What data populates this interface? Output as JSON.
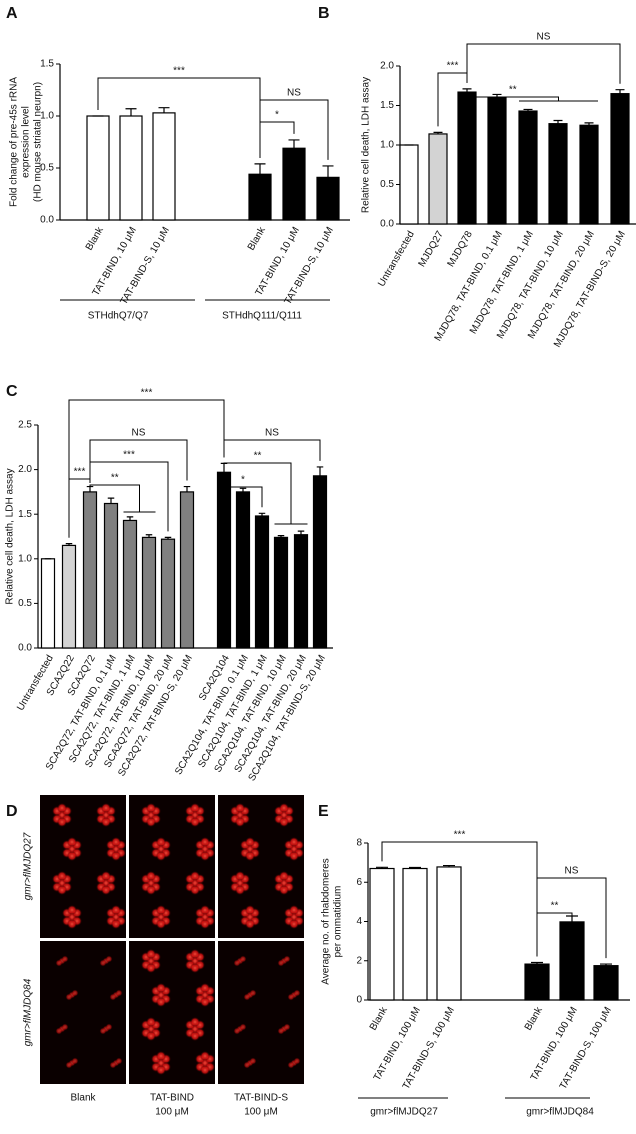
{
  "chart_data": [
    {
      "type": "bar",
      "panel_label": "A",
      "ylabel": [
        "Fold change of pre-45s rRNA",
        "expression level",
        "(HD mouse striatal neurpn)"
      ],
      "categories": [
        "Blank",
        "TAT-BIND, 10 μM",
        "TAT-BIND-S, 10 μM",
        "Blank",
        "TAT-BIND, 10 μM",
        "TAT-BIND-S, 10 μM"
      ],
      "values": [
        1.0,
        1.0,
        1.03,
        0.44,
        0.69,
        0.41
      ],
      "errors": [
        0.0,
        0.07,
        0.05,
        0.1,
        0.08,
        0.11
      ],
      "colors": [
        "#ffffff",
        "#ffffff",
        "#ffffff",
        "#000000",
        "#000000",
        "#000000"
      ],
      "groups": [
        "STHdhQ7/Q7",
        "STHdhQ111/Q111"
      ],
      "annotations": [
        "***",
        "NS",
        "*"
      ],
      "ylim": [
        0,
        1.5
      ],
      "yticks": [
        {
          "value": 0,
          "label": "0.0"
        },
        {
          "value": 0.5,
          "label": "0.5"
        },
        {
          "value": 1,
          "label": "1.0"
        },
        {
          "value": 1.5,
          "label": "1.5"
        }
      ]
    },
    {
      "type": "bar",
      "panel_label": "B",
      "ylabel": [
        "Relative cell death, LDH assay"
      ],
      "categories": [
        "Untransfected",
        "MJDQ27",
        "MJDQ78",
        "MJDQ78, TAT-BIND, 0.1 μM",
        "MJDQ78, TAT-BIND, 1 μM",
        "MJDQ78, TAT-BIND, 10 μM",
        "MJDQ78, TAT-BIND, 20 μM",
        "MJDQ78, TAT-BIND-S, 20 μM"
      ],
      "values": [
        1.0,
        1.14,
        1.67,
        1.6,
        1.43,
        1.27,
        1.25,
        1.65
      ],
      "errors": [
        0.0,
        0.02,
        0.04,
        0.04,
        0.02,
        0.04,
        0.03,
        0.05
      ],
      "colors": [
        "#ffffff",
        "#d3d3d3",
        "#000000",
        "#000000",
        "#000000",
        "#000000",
        "#000000",
        "#000000"
      ],
      "annotations": [
        "***",
        "**",
        "NS"
      ],
      "ylim": [
        0,
        2
      ],
      "yticks": [
        {
          "value": 0,
          "label": "0.0"
        },
        {
          "value": 0.5,
          "label": "0.5"
        },
        {
          "value": 1,
          "label": "1.0"
        },
        {
          "value": 1.5,
          "label": "1.5"
        },
        {
          "value": 2,
          "label": "2.0"
        }
      ]
    },
    {
      "type": "bar",
      "panel_label": "C",
      "ylabel": [
        "Relative cell death, LDH assay"
      ],
      "categories": [
        "Untransfected",
        "SCA2Q22",
        "SCA2Q72",
        "SCA2Q72, TAT-BIND, 0.1 μM",
        "SCA2Q72, TAT-BIND, 1 μM",
        "SCA2Q72, TAT-BIND, 10 μM",
        "SCA2Q72, TAT-BIND, 20 μM",
        "SCA2Q72, TAT-BIND-S, 20 μM",
        "SCA2Q104",
        "SCA2Q104, TAT-BIND, 0.1 μM",
        "SCA2Q104, TAT-BIND, 1 μM",
        "SCA2Q104, TAT-BIND, 10 μM",
        "SCA2Q104, TAT-BIND, 20 μM",
        "SCA2Q104, TAT-BIND-S, 20 μM"
      ],
      "values": [
        1.0,
        1.15,
        1.75,
        1.62,
        1.43,
        1.24,
        1.22,
        1.75,
        1.97,
        1.75,
        1.48,
        1.24,
        1.27,
        1.93
      ],
      "errors": [
        0.0,
        0.02,
        0.06,
        0.06,
        0.04,
        0.03,
        0.02,
        0.06,
        0.1,
        0.04,
        0.03,
        0.02,
        0.04,
        0.1
      ],
      "colors": [
        "#ffffff",
        "#d3d3d3",
        "#808080",
        "#808080",
        "#808080",
        "#808080",
        "#808080",
        "#808080",
        "#000000",
        "#000000",
        "#000000",
        "#000000",
        "#000000",
        "#000000"
      ],
      "annotations": [
        "***",
        "NS",
        "**",
        "*",
        "NS",
        "***",
        "**",
        "***"
      ],
      "ylim": [
        0,
        2.5
      ],
      "yticks": [
        {
          "value": 0,
          "label": "0.0"
        },
        {
          "value": 0.5,
          "label": "0.5"
        },
        {
          "value": 1,
          "label": "1.0"
        },
        {
          "value": 1.5,
          "label": "1.5"
        },
        {
          "value": 2,
          "label": "2.0"
        },
        {
          "value": 2.5,
          "label": "2.5"
        }
      ]
    },
    {
      "type": "bar",
      "panel_label": "E",
      "ylabel": [
        "Average no. of rhabdomeres",
        "per ommatidium"
      ],
      "categories": [
        "Blank",
        "TAT-BIND, 100 μM",
        "TAT-BIND-S, 100 μM",
        "Blank",
        "TAT-BIND, 100 μM",
        "TAT-BIND-S, 100 μM"
      ],
      "values": [
        6.7,
        6.7,
        6.78,
        1.83,
        3.98,
        1.75
      ],
      "errors": [
        0.06,
        0.05,
        0.07,
        0.08,
        0.3,
        0.08
      ],
      "colors": [
        "#ffffff",
        "#ffffff",
        "#ffffff",
        "#000000",
        "#000000",
        "#000000"
      ],
      "groups": [
        "gmr>flMJDQ27",
        "gmr>flMJDQ84"
      ],
      "annotations": [
        "***",
        "NS",
        "**"
      ],
      "ylim": [
        0,
        8
      ],
      "yticks": [
        0,
        2,
        4,
        6,
        8
      ]
    }
  ],
  "panel_d": {
    "panel_label": "D",
    "columns": [
      [
        "Blank"
      ],
      [
        "TAT-BIND",
        "100 μM"
      ],
      [
        "TAT-BIND-S",
        "100 μM"
      ]
    ],
    "rows": [
      "gmr>flMJDQ27",
      "gmr>flMJDQ84"
    ]
  }
}
